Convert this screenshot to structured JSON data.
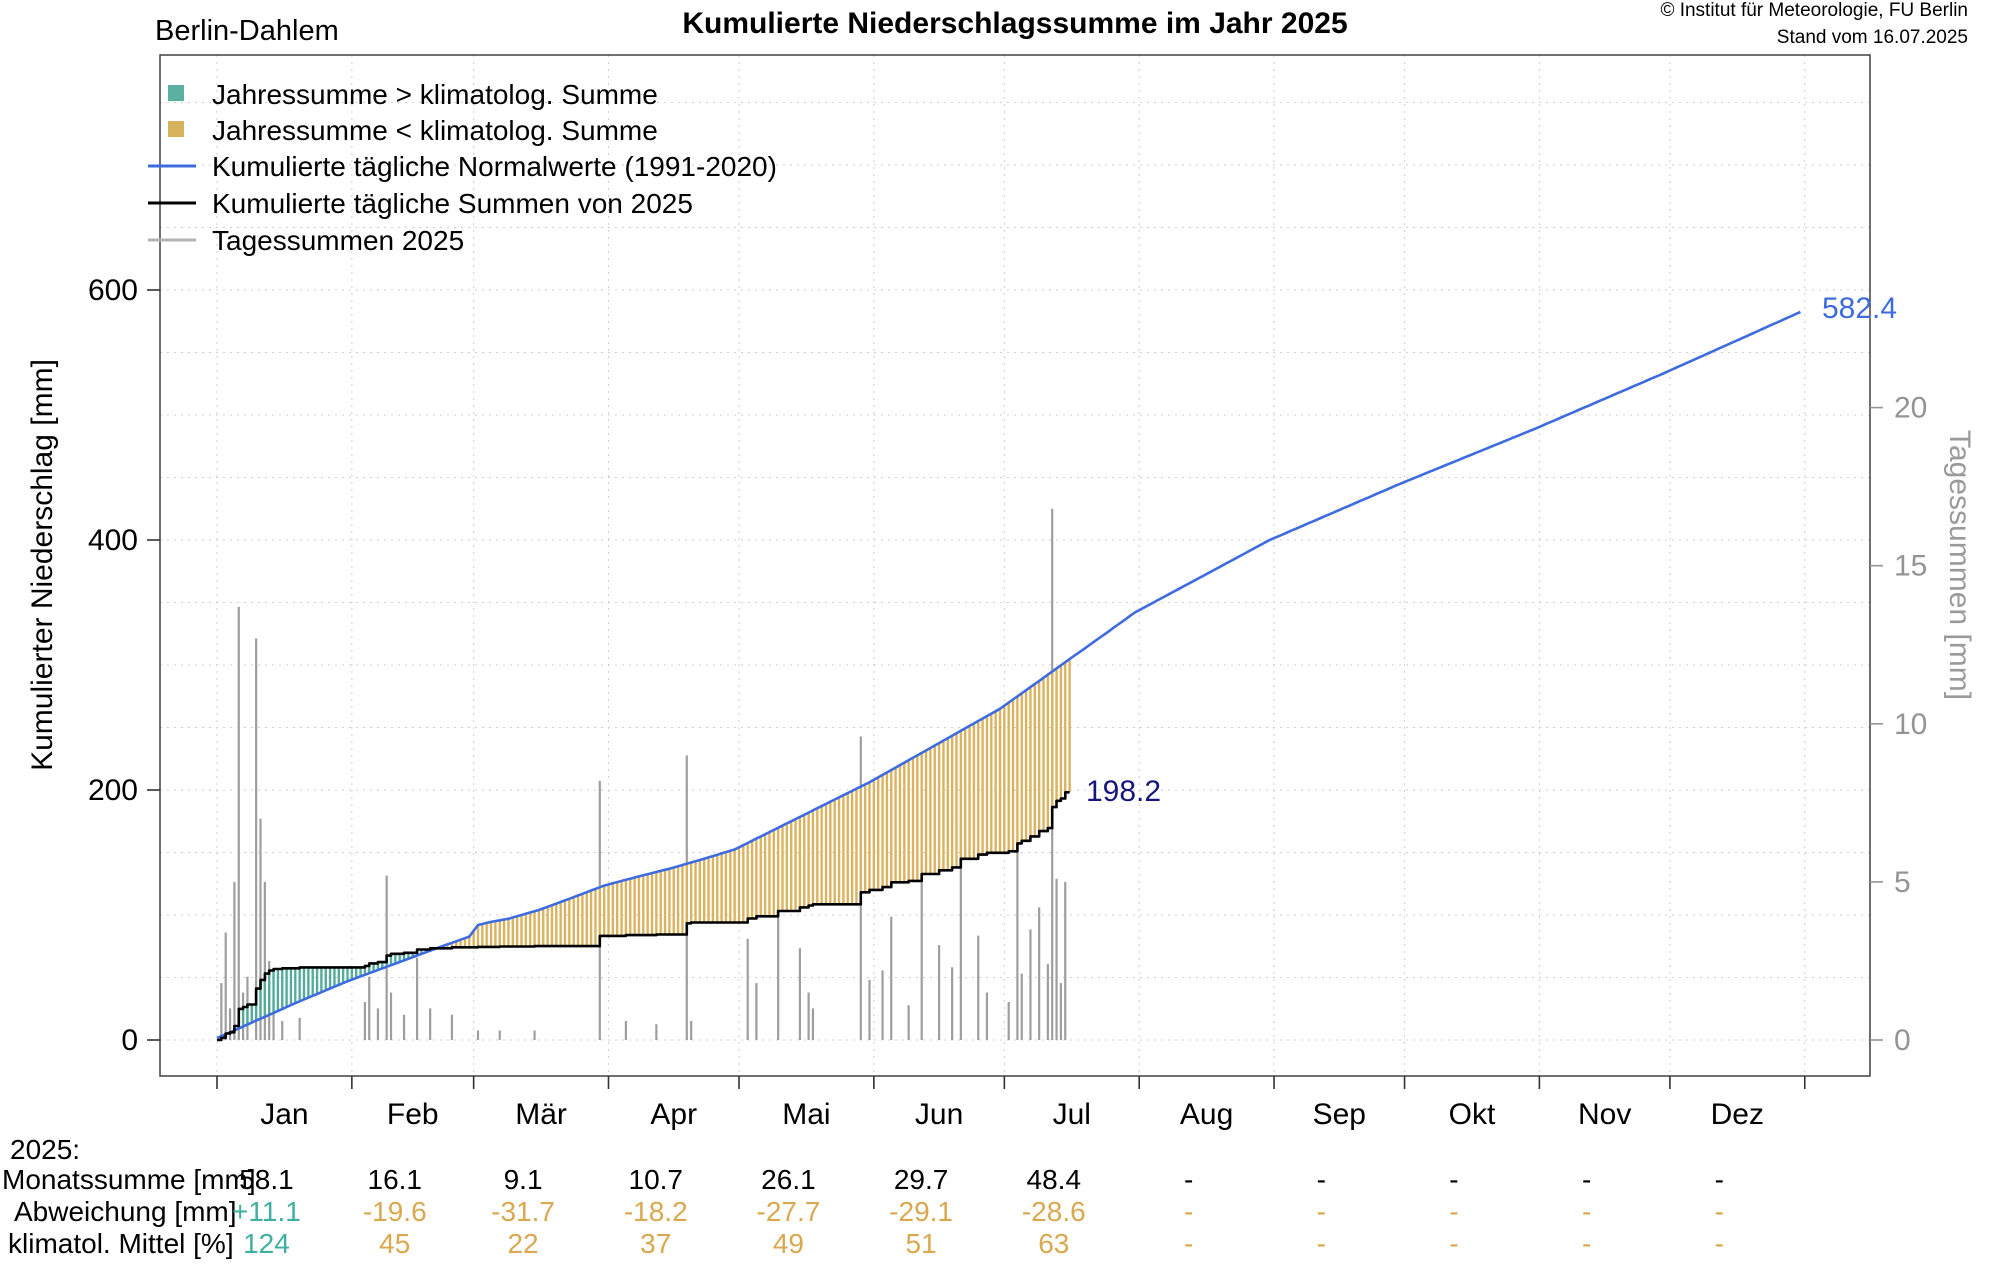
{
  "header": {
    "station": "Berlin-Dahlem",
    "title": "Kumulierte Niederschlagssumme im Jahr 2025",
    "copyright": "© Institut für Meteorologie, FU Berlin",
    "stand": "Stand vom 16.07.2025"
  },
  "legend": {
    "items": [
      {
        "marker": "square-teal",
        "label": "Jahressumme > klimatolog. Summe"
      },
      {
        "marker": "square-tan",
        "label": "Jahressumme < klimatolog. Summe"
      },
      {
        "marker": "line-blue",
        "label": "Kumulierte tägliche Normalwerte (1991-2020)"
      },
      {
        "marker": "line-black",
        "label": "Kumulierte tägliche Summen von 2025"
      },
      {
        "marker": "line-gray",
        "label": "Tagessummen 2025"
      }
    ]
  },
  "axes": {
    "left": {
      "title": "Kumulierter Niederschlag [mm]",
      "ticks": [
        0,
        200,
        400,
        600
      ]
    },
    "right": {
      "title": "Tagessummen [mm]",
      "ticks": [
        0,
        5,
        10,
        15,
        20
      ]
    },
    "months": [
      "Jan",
      "Feb",
      "Mär",
      "Apr",
      "Mai",
      "Jun",
      "Jul",
      "Aug",
      "Sep",
      "Okt",
      "Nov",
      "Dez"
    ]
  },
  "annotations": {
    "normals_total": "582.4",
    "actual_total": "198.2"
  },
  "colors": {
    "teal": "#53ac9b",
    "tan": "#dcb25e",
    "teal_text": "#3fb0a0",
    "tan_text": "#d9a84f",
    "blue_line": "#3e6cdf",
    "black_line": "#000000",
    "gray_bar": "#9e9e9e",
    "grid": "#cfcfcf",
    "navy_label": "#15157d"
  },
  "chart_data": {
    "type": "line+bar",
    "title": "Kumulierte Niederschlagssumme im Jahr 2025",
    "x_unit": "day_of_year",
    "x_range": [
      1,
      365
    ],
    "ylim_left_mm": [
      0,
      750
    ],
    "ylim_right_mm": [
      0,
      24
    ],
    "grid": "dotted, 50 mm horizontal, month boundaries vertical",
    "legend_position": "top-left inside plot",
    "month_lengths": [
      31,
      28,
      31,
      30,
      31,
      30,
      31,
      31,
      30,
      31,
      30,
      31
    ],
    "normals_cumulative_anchors": [
      [
        1,
        1.5
      ],
      [
        10,
        15.5
      ],
      [
        20,
        31
      ],
      [
        31,
        47
      ],
      [
        38,
        56
      ],
      [
        45,
        65
      ],
      [
        52,
        74
      ],
      [
        59,
        82.7
      ],
      [
        61,
        92
      ],
      [
        64,
        94.5
      ],
      [
        68,
        97
      ],
      [
        75,
        104
      ],
      [
        82,
        113
      ],
      [
        90,
        123.5
      ],
      [
        97,
        130
      ],
      [
        105,
        137
      ],
      [
        112,
        144
      ],
      [
        120,
        152.4
      ],
      [
        128,
        166.3
      ],
      [
        136,
        180.2
      ],
      [
        144,
        194.1
      ],
      [
        151,
        206.2
      ],
      [
        160,
        223.8
      ],
      [
        170,
        243.4
      ],
      [
        181,
        265.0
      ],
      [
        190,
        287.3
      ],
      [
        197,
        304.7
      ],
      [
        204,
        322
      ],
      [
        212,
        342.0
      ],
      [
        227,
        370
      ],
      [
        243,
        400
      ],
      [
        258,
        422.5
      ],
      [
        273,
        445
      ],
      [
        289,
        467.7
      ],
      [
        304,
        489
      ],
      [
        319,
        511.5
      ],
      [
        334,
        534
      ],
      [
        350,
        559
      ],
      [
        365,
        582.4
      ]
    ],
    "normals_year_total": 582.4,
    "actual_last_day": 197,
    "actual_total": 198.2,
    "daily_precip_2025": [
      [
        2,
        1.8
      ],
      [
        3,
        3.4
      ],
      [
        4,
        1.0
      ],
      [
        5,
        5.0
      ],
      [
        6,
        13.7
      ],
      [
        7,
        1.5
      ],
      [
        8,
        2.0
      ],
      [
        10,
        12.7
      ],
      [
        11,
        7.0
      ],
      [
        12,
        5.0
      ],
      [
        13,
        2.5
      ],
      [
        14,
        1.2
      ],
      [
        16,
        0.6
      ],
      [
        20,
        0.7
      ],
      [
        35,
        1.2
      ],
      [
        36,
        2.0
      ],
      [
        38,
        1.0
      ],
      [
        40,
        5.2
      ],
      [
        41,
        1.5
      ],
      [
        44,
        0.8
      ],
      [
        47,
        2.6
      ],
      [
        50,
        1.0
      ],
      [
        55,
        0.8
      ],
      [
        61,
        0.3
      ],
      [
        66,
        0.3
      ],
      [
        74,
        0.3
      ],
      [
        89,
        8.2
      ],
      [
        95,
        0.6
      ],
      [
        102,
        0.5
      ],
      [
        109,
        9.0
      ],
      [
        110,
        0.6
      ],
      [
        123,
        3.2
      ],
      [
        125,
        1.8
      ],
      [
        130,
        4.2
      ],
      [
        135,
        2.9
      ],
      [
        137,
        1.5
      ],
      [
        138,
        1.0
      ],
      [
        149,
        9.6
      ],
      [
        151,
        1.9
      ],
      [
        154,
        2.2
      ],
      [
        156,
        3.9
      ],
      [
        160,
        1.1
      ],
      [
        163,
        5.5
      ],
      [
        167,
        3.0
      ],
      [
        170,
        2.3
      ],
      [
        172,
        6.9
      ],
      [
        176,
        3.3
      ],
      [
        178,
        1.5
      ],
      [
        183,
        1.2
      ],
      [
        185,
        6.3
      ],
      [
        186,
        2.1
      ],
      [
        188,
        3.5
      ],
      [
        190,
        4.2
      ],
      [
        192,
        2.4
      ],
      [
        193,
        16.8
      ],
      [
        194,
        5.1
      ],
      [
        195,
        1.8
      ],
      [
        196,
        5.0
      ]
    ]
  },
  "table": {
    "year_label": "2025:",
    "rows": [
      {
        "label": "Monatssumme [mm]",
        "values": [
          "58.1",
          "16.1",
          "9.1",
          "10.7",
          "26.1",
          "29.7",
          "48.4",
          "-",
          "-",
          "-",
          "-",
          "-"
        ],
        "value_style": "black"
      },
      {
        "label": "Abweichung [mm]",
        "values": [
          "+11.1",
          "-19.6",
          "-31.7",
          "-18.2",
          "-27.7",
          "-29.1",
          "-28.6",
          "-",
          "-",
          "-",
          "-",
          "-"
        ],
        "value_style": "signed"
      },
      {
        "label": "klimatol. Mittel [%]",
        "values": [
          "124",
          "45",
          "22",
          "37",
          "49",
          "51",
          "63",
          "-",
          "-",
          "-",
          "-",
          "-"
        ],
        "value_style": "signed"
      }
    ]
  }
}
